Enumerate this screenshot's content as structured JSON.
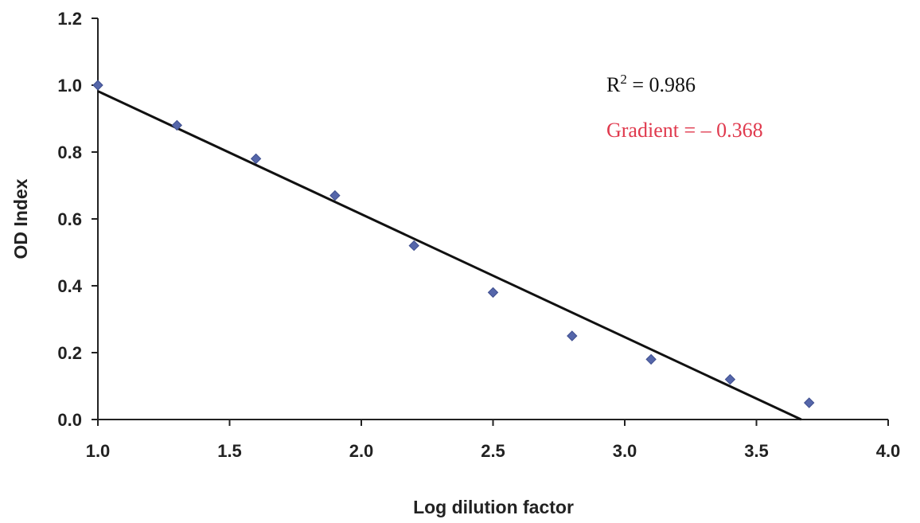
{
  "chart_data": {
    "type": "scatter",
    "title": "",
    "xlabel": "Log dilution factor",
    "ylabel": "OD Index",
    "xlim": [
      1.0,
      4.0
    ],
    "ylim": [
      0.0,
      1.2
    ],
    "xticks": [
      "1.0",
      "1.5",
      "2.0",
      "2.5",
      "3.0",
      "3.5",
      "4.0"
    ],
    "yticks": [
      "0.0",
      "0.2",
      "0.4",
      "0.6",
      "0.8",
      "1.0",
      "1.2"
    ],
    "grid": false,
    "legend": "none",
    "series": [
      {
        "marker_color": "#5566aa",
        "points": [
          {
            "x": 1.0,
            "y": 1.0
          },
          {
            "x": 1.3,
            "y": 0.88
          },
          {
            "x": 1.6,
            "y": 0.78
          },
          {
            "x": 1.9,
            "y": 0.67
          },
          {
            "x": 2.2,
            "y": 0.52
          },
          {
            "x": 2.5,
            "y": 0.38
          },
          {
            "x": 2.8,
            "y": 0.25
          },
          {
            "x": 3.1,
            "y": 0.18
          },
          {
            "x": 3.4,
            "y": 0.12
          },
          {
            "x": 3.7,
            "y": 0.05
          }
        ]
      }
    ],
    "trendline": {
      "color": "#111111",
      "start": {
        "x": 1.0,
        "y": 0.982
      },
      "end": {
        "x": 3.67,
        "y": 0.0
      }
    },
    "annotations": {
      "r2": {
        "prefix": "R",
        "sup": "2",
        "suffix": " = 0.986",
        "color": "#111111"
      },
      "gradient": {
        "text": "Gradient = – 0.368",
        "color": "#e03a4e"
      }
    }
  }
}
